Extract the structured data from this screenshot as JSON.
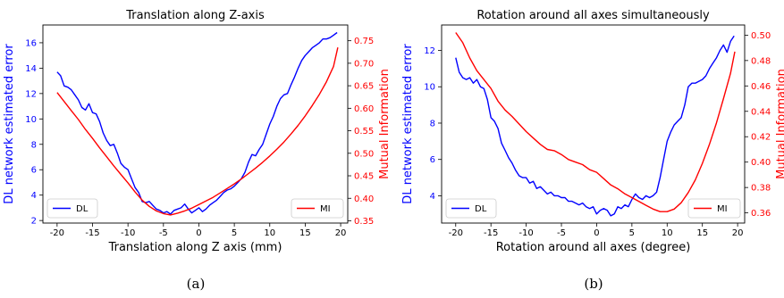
{
  "chart_data": [
    {
      "type": "line",
      "caption": "(a)",
      "title": "Translation along Z-axis",
      "xlabel": "Translation along Z axis (mm)",
      "ylabel_left": "DL network estimated error",
      "ylabel_right": "Mutual Information",
      "xlim": [
        -22,
        21
      ],
      "ylim_left": [
        1.8,
        17.4
      ],
      "ylim_right": [
        0.345,
        0.785
      ],
      "xticks": [
        -20,
        -15,
        -10,
        -5,
        0,
        5,
        10,
        15,
        20
      ],
      "yticks_left": [
        2,
        4,
        6,
        8,
        10,
        12,
        14,
        16
      ],
      "yticks_right": [
        0.35,
        0.4,
        0.45,
        0.5,
        0.55,
        0.6,
        0.65,
        0.7,
        0.75
      ],
      "left_color": "#0000ff",
      "right_color": "#ff0000",
      "legend_left": "DL",
      "legend_right": "MI",
      "legend_left_position": "lower-left",
      "legend_right_position": "lower-right",
      "series": [
        {
          "name": "DL",
          "axis": "left",
          "color": "#0000ff",
          "x": [
            -20,
            -19.5,
            -19,
            -18.5,
            -18,
            -17.5,
            -17,
            -16.5,
            -16,
            -15.5,
            -15,
            -14.5,
            -14,
            -13.5,
            -13,
            -12.5,
            -12,
            -11.5,
            -11,
            -10.5,
            -10,
            -9.5,
            -9,
            -8.5,
            -8,
            -7.5,
            -7,
            -6.5,
            -6,
            -5.5,
            -5,
            -4.5,
            -4,
            -3.5,
            -3,
            -2.5,
            -2,
            -1.5,
            -1,
            -0.5,
            0,
            0.5,
            1,
            1.5,
            2,
            2.5,
            3,
            3.5,
            4,
            4.5,
            5,
            5.5,
            6,
            6.5,
            7,
            7.5,
            8,
            8.5,
            9,
            9.5,
            10,
            10.5,
            11,
            11.5,
            12,
            12.5,
            13,
            13.5,
            14,
            14.5,
            15,
            15.5,
            16,
            16.5,
            17,
            17.5,
            18,
            18.5,
            19,
            19.5
          ],
          "y": [
            13.7,
            13.4,
            12.6,
            12.5,
            12.3,
            11.9,
            11.5,
            10.9,
            10.7,
            11.2,
            10.5,
            10.4,
            9.8,
            8.9,
            8.3,
            7.9,
            8.0,
            7.3,
            6.5,
            6.2,
            6.0,
            5.3,
            4.6,
            4.2,
            3.5,
            3.4,
            3.5,
            3.2,
            2.9,
            2.8,
            2.6,
            2.7,
            2.5,
            2.8,
            2.9,
            3.0,
            3.3,
            2.9,
            2.6,
            2.8,
            3.0,
            2.7,
            2.9,
            3.2,
            3.4,
            3.6,
            3.9,
            4.2,
            4.4,
            4.5,
            4.7,
            5.0,
            5.3,
            5.8,
            6.6,
            7.2,
            7.1,
            7.6,
            8.0,
            8.8,
            9.6,
            10.2,
            11.0,
            11.6,
            11.9,
            12.0,
            12.7,
            13.3,
            14.0,
            14.6,
            15.0,
            15.3,
            15.6,
            15.8,
            16.0,
            16.3,
            16.3,
            16.4,
            16.6,
            16.8
          ]
        },
        {
          "name": "MI",
          "axis": "right",
          "color": "#ff0000",
          "x": [
            -20,
            -19,
            -18,
            -17,
            -16,
            -15,
            -14,
            -13,
            -12,
            -11,
            -10,
            -9,
            -8,
            -7,
            -6,
            -5,
            -4,
            -3,
            -2,
            -1,
            0,
            1,
            2,
            3,
            4,
            5,
            6,
            7,
            8,
            9,
            10,
            11,
            12,
            13,
            14,
            15,
            16,
            17,
            18,
            19,
            19.6
          ],
          "y": [
            0.635,
            0.615,
            0.595,
            0.575,
            0.553,
            0.533,
            0.512,
            0.492,
            0.472,
            0.453,
            0.434,
            0.414,
            0.396,
            0.382,
            0.372,
            0.366,
            0.363,
            0.367,
            0.372,
            0.378,
            0.386,
            0.394,
            0.402,
            0.412,
            0.422,
            0.432,
            0.443,
            0.455,
            0.467,
            0.48,
            0.494,
            0.509,
            0.525,
            0.543,
            0.562,
            0.583,
            0.606,
            0.631,
            0.659,
            0.693,
            0.735
          ]
        }
      ]
    },
    {
      "type": "line",
      "caption": "(b)",
      "title": "Rotation around all axes simultaneously",
      "xlabel": "Rotation around all axes (degree)",
      "ylabel_left": "DL network estimated error",
      "ylabel_right": "Mutual Information",
      "xlim": [
        -22,
        21
      ],
      "ylim_left": [
        2.5,
        13.4
      ],
      "ylim_right": [
        0.352,
        0.508
      ],
      "xticks": [
        -20,
        -15,
        -10,
        -5,
        0,
        5,
        10,
        15,
        20
      ],
      "yticks_left": [
        4,
        6,
        8,
        10,
        12
      ],
      "yticks_right": [
        0.36,
        0.38,
        0.4,
        0.42,
        0.44,
        0.46,
        0.48,
        0.5
      ],
      "left_color": "#0000ff",
      "right_color": "#ff0000",
      "legend_left": "DL",
      "legend_right": "MI",
      "legend_left_position": "lower-left",
      "legend_right_position": "lower-right",
      "series": [
        {
          "name": "DL",
          "axis": "left",
          "color": "#0000ff",
          "x": [
            -20,
            -19.5,
            -19,
            -18.5,
            -18,
            -17.5,
            -17,
            -16.5,
            -16,
            -15.5,
            -15,
            -14.5,
            -14,
            -13.5,
            -13,
            -12.5,
            -12,
            -11.5,
            -11,
            -10.5,
            -10,
            -9.5,
            -9,
            -8.5,
            -8,
            -7.5,
            -7,
            -6.5,
            -6,
            -5.5,
            -5,
            -4.5,
            -4,
            -3.5,
            -3,
            -2.5,
            -2,
            -1.5,
            -1,
            -0.5,
            0,
            0.5,
            1,
            1.5,
            2,
            2.5,
            3,
            3.5,
            4,
            4.5,
            5,
            5.5,
            6,
            6.5,
            7,
            7.5,
            8,
            8.5,
            9,
            9.5,
            10,
            10.5,
            11,
            11.5,
            12,
            12.5,
            13,
            13.5,
            14,
            14.5,
            15,
            15.5,
            16,
            16.5,
            17,
            17.5,
            18,
            18.5,
            19,
            19.5
          ],
          "y": [
            11.6,
            10.8,
            10.5,
            10.4,
            10.5,
            10.2,
            10.4,
            10.0,
            9.9,
            9.3,
            8.3,
            8.1,
            7.7,
            6.9,
            6.5,
            6.1,
            5.8,
            5.4,
            5.1,
            5.0,
            5.0,
            4.7,
            4.8,
            4.4,
            4.5,
            4.3,
            4.1,
            4.2,
            4.0,
            4.0,
            3.9,
            3.9,
            3.7,
            3.7,
            3.6,
            3.5,
            3.6,
            3.4,
            3.3,
            3.4,
            3.0,
            3.2,
            3.3,
            3.2,
            2.9,
            3.0,
            3.4,
            3.3,
            3.5,
            3.4,
            3.8,
            4.1,
            3.9,
            3.8,
            4.0,
            3.9,
            4.0,
            4.2,
            5.0,
            6.0,
            7.0,
            7.5,
            7.9,
            8.1,
            8.3,
            9.0,
            10.0,
            10.2,
            10.2,
            10.3,
            10.4,
            10.6,
            11.0,
            11.3,
            11.6,
            12.0,
            12.3,
            11.9,
            12.5,
            12.8
          ]
        },
        {
          "name": "MI",
          "axis": "right",
          "color": "#ff0000",
          "x": [
            -20,
            -19,
            -18,
            -17,
            -16,
            -15,
            -14,
            -13,
            -12,
            -11,
            -10,
            -9,
            -8,
            -7,
            -6,
            -5,
            -4,
            -3,
            -2,
            -1,
            0,
            1,
            2,
            3,
            4,
            5,
            6,
            7,
            8,
            9,
            10,
            11,
            12,
            13,
            14,
            15,
            16,
            17,
            18,
            19,
            19.6
          ],
          "y": [
            0.502,
            0.494,
            0.482,
            0.472,
            0.465,
            0.458,
            0.448,
            0.441,
            0.436,
            0.43,
            0.424,
            0.419,
            0.414,
            0.41,
            0.409,
            0.406,
            0.402,
            0.4,
            0.398,
            0.394,
            0.392,
            0.387,
            0.382,
            0.379,
            0.375,
            0.372,
            0.369,
            0.366,
            0.363,
            0.361,
            0.361,
            0.363,
            0.368,
            0.376,
            0.386,
            0.399,
            0.414,
            0.431,
            0.45,
            0.47,
            0.487
          ]
        }
      ]
    }
  ]
}
